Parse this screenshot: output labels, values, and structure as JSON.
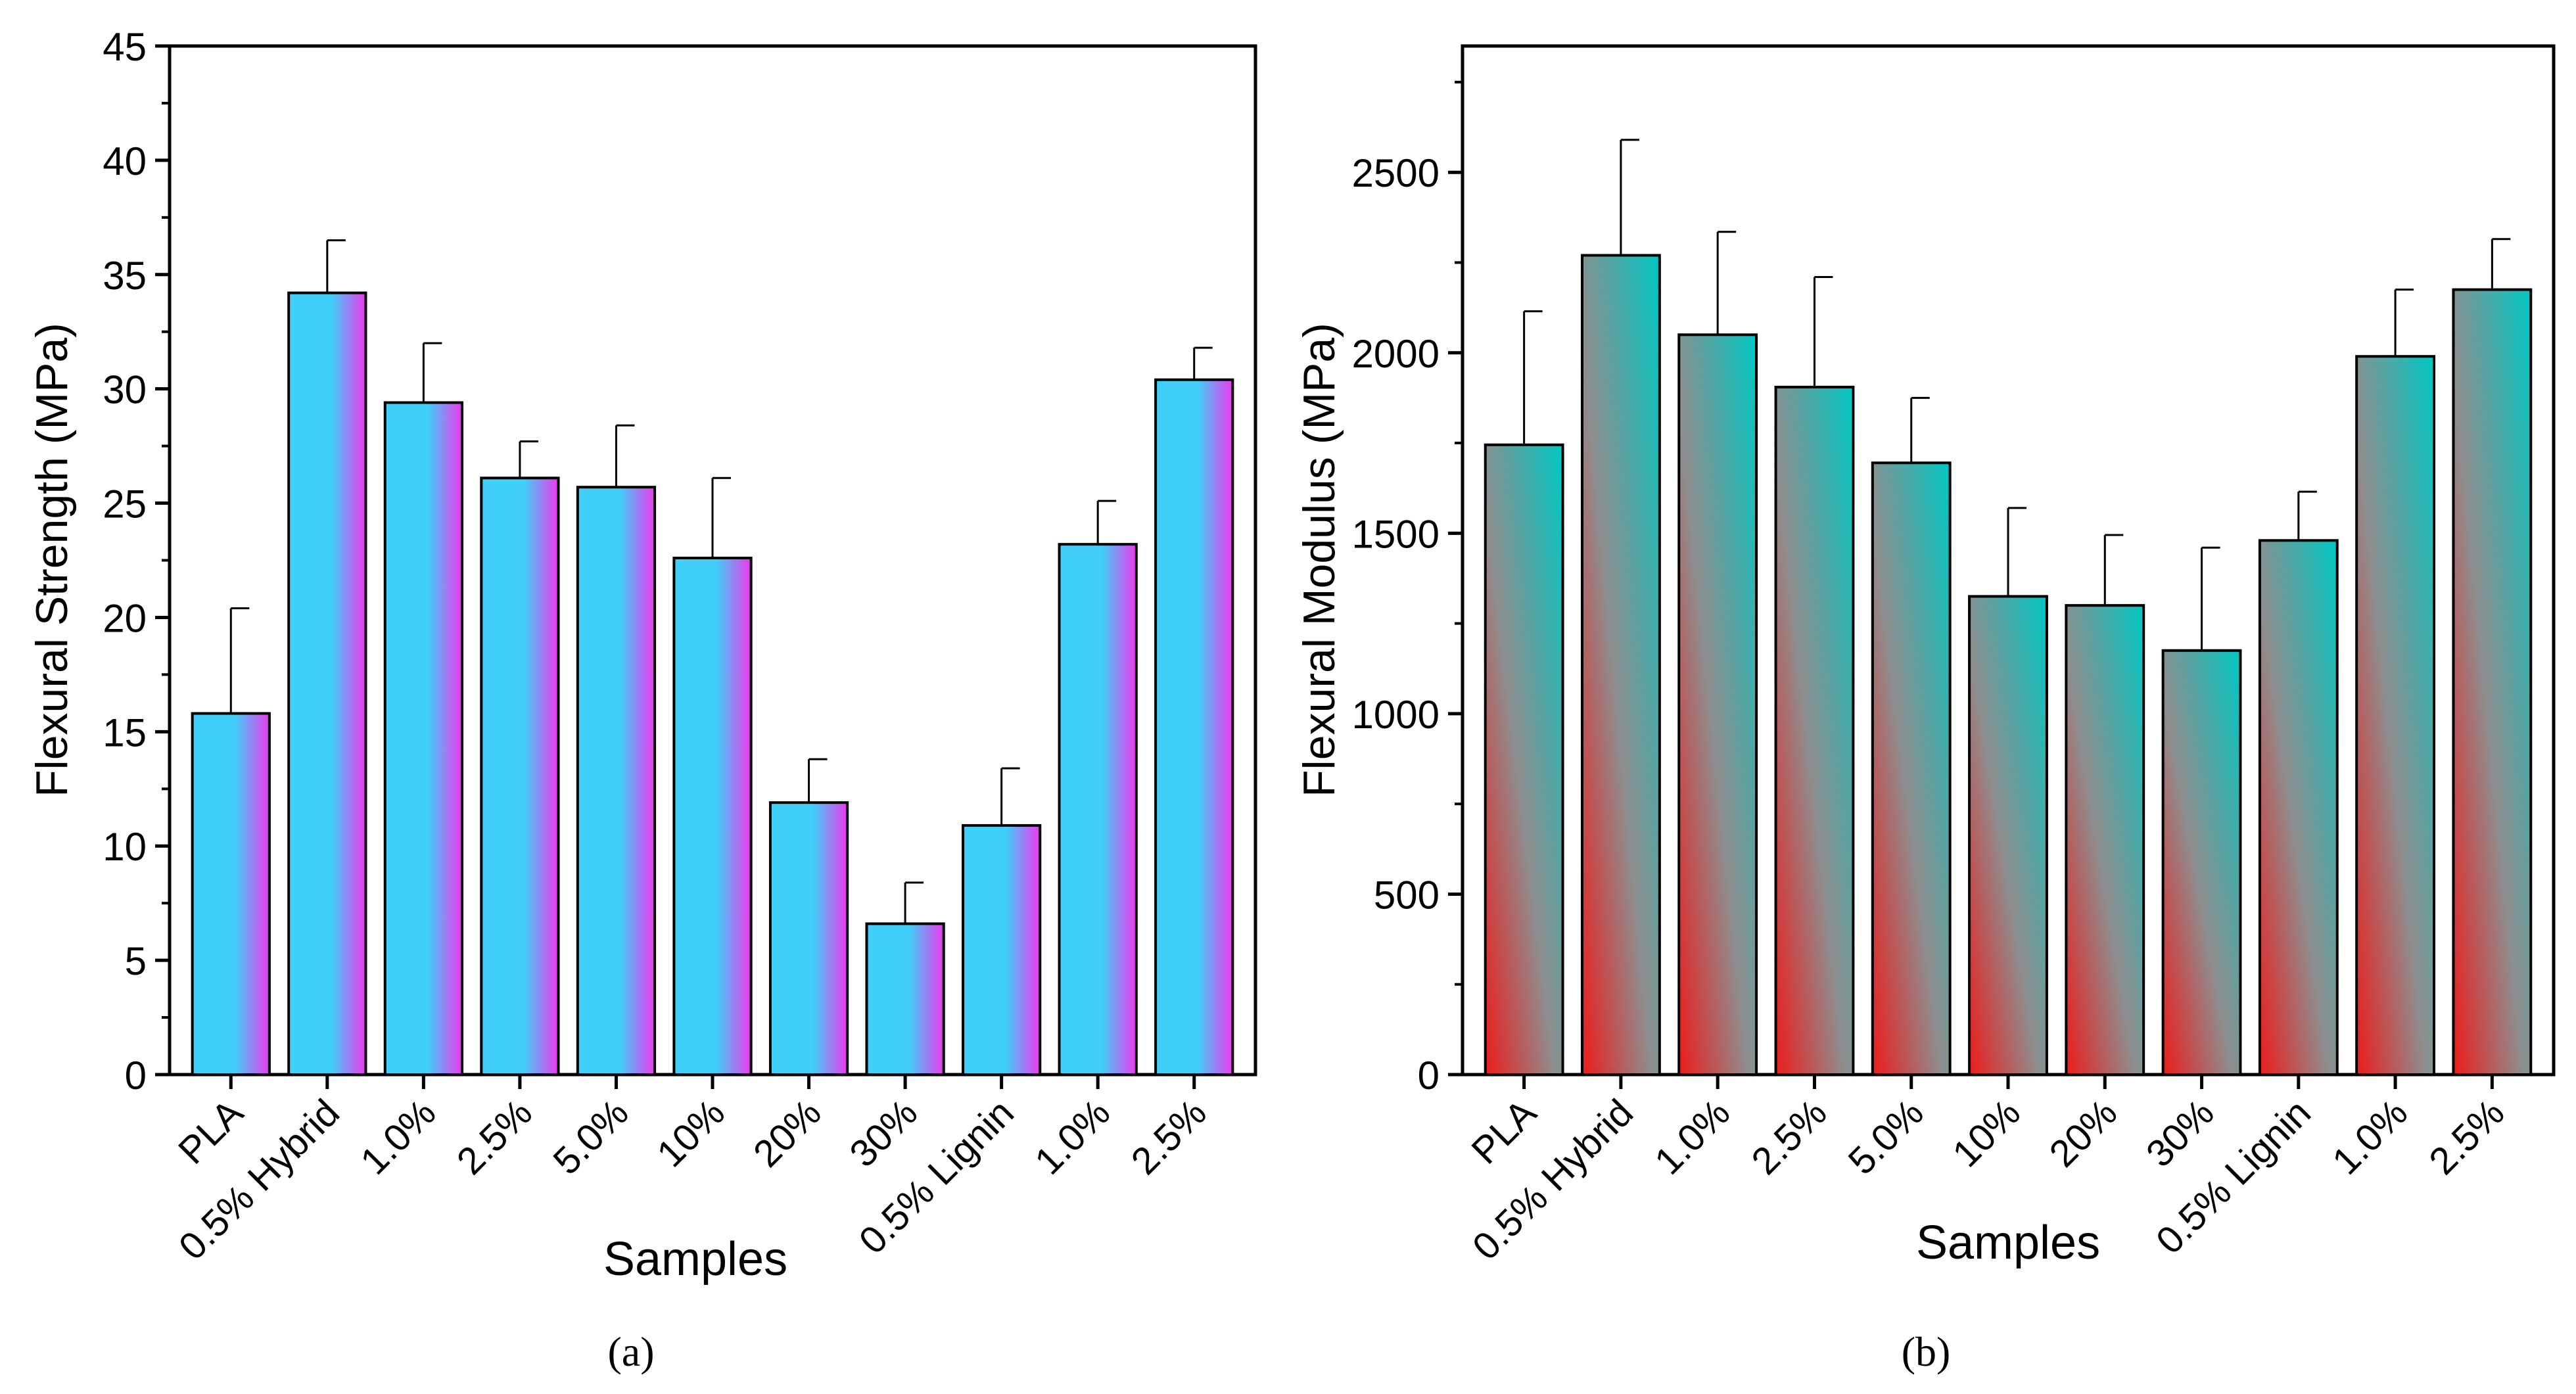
{
  "chart_data": [
    {
      "panel": "a",
      "caption": "(a)",
      "type": "bar",
      "title": "",
      "xlabel": "Samples",
      "ylabel": "Flexural Strength (MPa)",
      "ylim": [
        0,
        45
      ],
      "yticks": [
        0,
        5,
        10,
        15,
        20,
        25,
        30,
        35,
        40,
        45
      ],
      "ytick_labels": [
        "0",
        "5",
        "10",
        "15",
        "20",
        "25",
        "30",
        "35",
        "40",
        "45"
      ],
      "categories": [
        "PLA",
        "0.5% Hybrid",
        "1.0%",
        "2.5%",
        "5.0%",
        "10%",
        "20%",
        "30%",
        "0.5% Lignin",
        "1.0%",
        "2.5%"
      ],
      "values": [
        15.8,
        34.2,
        29.4,
        26.1,
        25.7,
        22.6,
        11.9,
        6.6,
        10.9,
        23.2,
        30.4
      ],
      "errors": [
        4.6,
        2.3,
        2.6,
        1.6,
        2.7,
        3.5,
        1.9,
        1.8,
        2.5,
        1.9,
        1.4
      ],
      "colors": {
        "gradient_a": "#3fcff8",
        "gradient_b": "#ee38ee"
      }
    },
    {
      "panel": "b",
      "caption": "(b)",
      "type": "bar",
      "title": "",
      "xlabel": "Samples",
      "ylabel": "Flexural Modulus (MPa)",
      "ylim": [
        0,
        2850
      ],
      "yticks": [
        0,
        500,
        1000,
        1500,
        2000,
        2500
      ],
      "ytick_labels": [
        "0",
        "500",
        "1000",
        "1500",
        "2000",
        "2500"
      ],
      "categories": [
        "PLA",
        "0.5% Hybrid",
        "1.0%",
        "2.5%",
        "5.0%",
        "10%",
        "20%",
        "30%",
        "0.5% Lignin",
        "1.0%",
        "2.5%"
      ],
      "values": [
        1745,
        2270,
        2050,
        1905,
        1695,
        1325,
        1300,
        1175,
        1480,
        1990,
        2175
      ],
      "errors": [
        370,
        320,
        285,
        305,
        180,
        245,
        195,
        285,
        135,
        185,
        140
      ],
      "colors": {
        "gradient_a": "#00c8c4",
        "gradient_b": "#ec1c1c"
      }
    }
  ]
}
